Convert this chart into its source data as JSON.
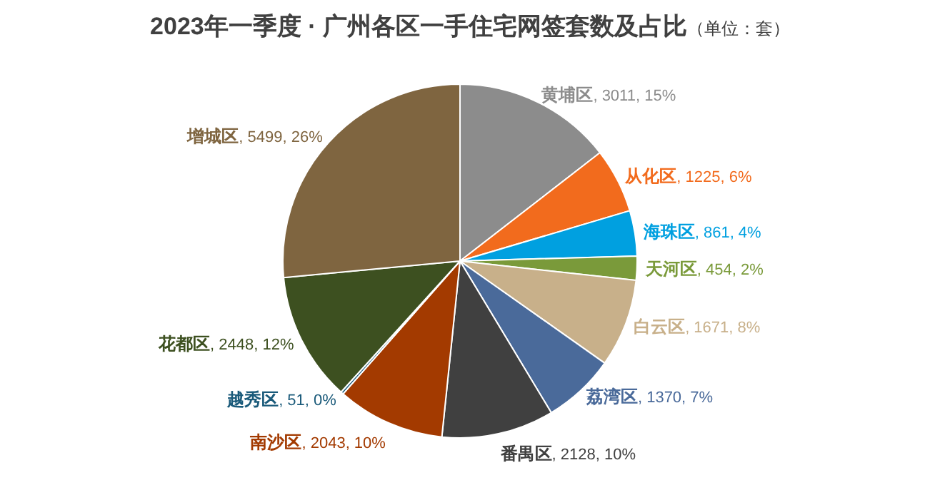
{
  "chart_data": {
    "type": "pie",
    "title": "2023年一季度 · 广州各区一手住宅网签套数及占比",
    "subtitle": "（单位：套）",
    "categories": [
      "黄埔区",
      "从化区",
      "海珠区",
      "天河区",
      "白云区",
      "荔湾区",
      "番禺区",
      "南沙区",
      "越秀区",
      "花都区",
      "增城区"
    ],
    "values": [
      3011,
      1225,
      861,
      454,
      1671,
      1370,
      2128,
      2043,
      51,
      2448,
      5499
    ],
    "value_labels": [
      ", 3011, 15%",
      ", 1225, 6%",
      ", 861, 4%",
      ", 454, 2%",
      ", 1671, 8%",
      ", 1370, 7%",
      ", 2128, 10%",
      ", 2043, 10%",
      ", 51, 0%",
      ", 2448, 12%",
      ", 5499, 26%"
    ],
    "colors": [
      "#8c8c8c",
      "#f26b1d",
      "#00a0e0",
      "#7a9a3a",
      "#c8b08a",
      "#4a6a9a",
      "#404040",
      "#a33a00",
      "#1a5a7a",
      "#3d5020",
      "#7f6540"
    ],
    "legend": false
  }
}
